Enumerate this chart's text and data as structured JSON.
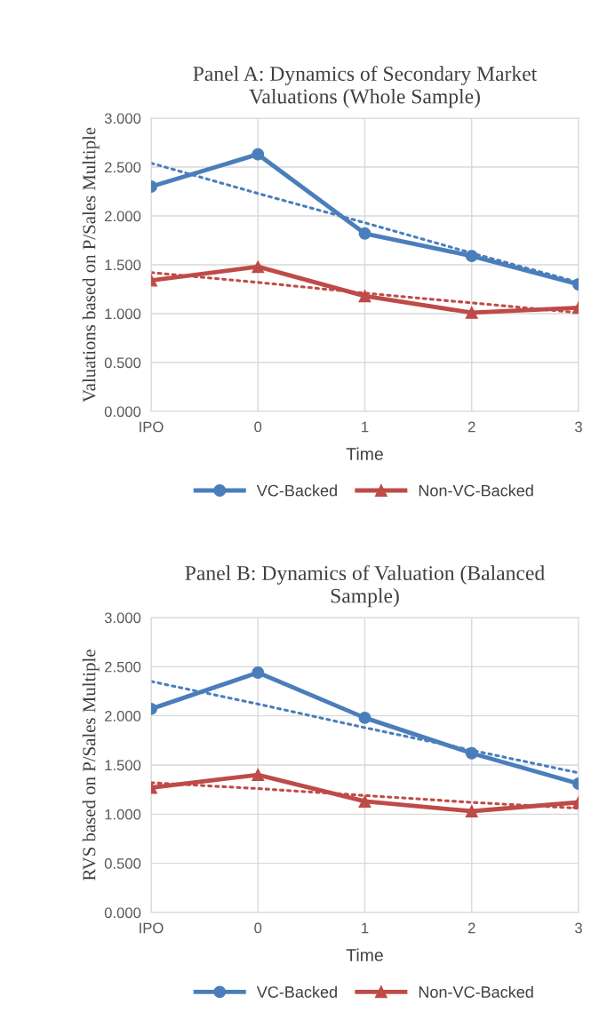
{
  "chart_data": [
    {
      "type": "line",
      "title": "Panel A: Dynamics of Secondary Market\nValuations (Whole Sample)",
      "xlabel": "Time",
      "ylabel": "Valuations based on P/Sales Multiple",
      "categories": [
        "IPO",
        "0",
        "1",
        "2",
        "3"
      ],
      "ylim": [
        0,
        3
      ],
      "yticks": [
        {
          "value": 0,
          "label": "0.000"
        },
        {
          "value": 0.5,
          "label": "0.500"
        },
        {
          "value": 1,
          "label": "1.000"
        },
        {
          "value": 1.5,
          "label": "1.500"
        },
        {
          "value": 2,
          "label": "2.000"
        },
        {
          "value": 2.5,
          "label": "2.500"
        },
        {
          "value": 3,
          "label": "3.000"
        }
      ],
      "grid": true,
      "legend": "bottom",
      "series": [
        {
          "name": "VC-Backed",
          "color": "#4a7ebb",
          "marker": "circle",
          "line_style": "solid",
          "values": [
            2.3,
            2.63,
            1.82,
            1.59,
            1.3
          ]
        },
        {
          "name": "Non-VC-Backed",
          "color": "#be4b48",
          "marker": "triangle",
          "line_style": "solid",
          "values": [
            1.34,
            1.48,
            1.18,
            1.01,
            1.06
          ]
        },
        {
          "color": "#4a7ebb",
          "marker": "none",
          "line_style": "dotted",
          "values": [
            2.54,
            2.23,
            1.93,
            1.62,
            1.32
          ]
        },
        {
          "color": "#be4b48",
          "marker": "none",
          "line_style": "dotted",
          "values": [
            1.42,
            1.32,
            1.21,
            1.11,
            1.01
          ]
        }
      ]
    },
    {
      "type": "line",
      "title": "Panel B: Dynamics of Valuation (Balanced\nSample)",
      "xlabel": "Time",
      "ylabel": "RVS based on P/Sales Multiple",
      "categories": [
        "IPO",
        "0",
        "1",
        "2",
        "3"
      ],
      "ylim": [
        0,
        3
      ],
      "yticks": [
        {
          "value": 0,
          "label": "0.000"
        },
        {
          "value": 0.5,
          "label": "0.500"
        },
        {
          "value": 1,
          "label": "1.000"
        },
        {
          "value": 1.5,
          "label": "1.500"
        },
        {
          "value": 2,
          "label": "2.000"
        },
        {
          "value": 2.5,
          "label": "2.500"
        },
        {
          "value": 3,
          "label": "3.000"
        }
      ],
      "grid": true,
      "legend": "bottom",
      "series": [
        {
          "name": "VC-Backed",
          "color": "#4a7ebb",
          "marker": "circle",
          "line_style": "solid",
          "values": [
            2.07,
            2.44,
            1.98,
            1.62,
            1.31
          ]
        },
        {
          "name": "Non-VC-Backed",
          "color": "#be4b48",
          "marker": "triangle",
          "line_style": "solid",
          "values": [
            1.27,
            1.4,
            1.13,
            1.03,
            1.12
          ]
        },
        {
          "color": "#4a7ebb",
          "marker": "none",
          "line_style": "dotted",
          "values": [
            2.35,
            2.12,
            1.88,
            1.65,
            1.42
          ]
        },
        {
          "color": "#be4b48",
          "marker": "none",
          "line_style": "dotted",
          "values": [
            1.32,
            1.26,
            1.19,
            1.12,
            1.06
          ]
        }
      ]
    }
  ]
}
